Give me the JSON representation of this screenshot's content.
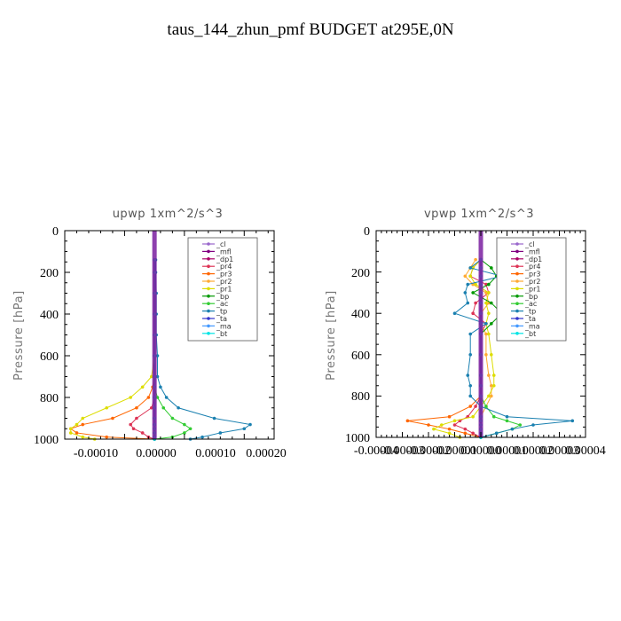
{
  "figure_title": "taus_144_zhun_pmf  BUDGET at295E,0N",
  "legend_entries": [
    "_cl",
    "_mfl",
    "_dp1",
    "_pr4",
    "_pr3",
    "_pr2",
    "_pr1",
    "_bp",
    "_ac",
    "_tp",
    "_ta",
    "_ma",
    "_bt"
  ],
  "colors": {
    "_cl": "#9966cc",
    "_mfl": "#800080",
    "_dp1": "#aa0066",
    "_pr4": "#dd3355",
    "_pr3": "#ff6600",
    "_pr2": "#ffaa33",
    "_pr1": "#dddd00",
    "_bp": "#009900",
    "_ac": "#33cc33",
    "_tp": "#1a80b0",
    "_ta": "#3333cc",
    "_ma": "#4499ff",
    "_bt": "#00e5e5"
  },
  "chart_data": [
    {
      "type": "line",
      "title": "upwp   1xm^2/s^3",
      "ylabel": "Pressure [hPa]",
      "ylim": [
        1000,
        0
      ],
      "xlim": [
        -0.00015,
        0.0002
      ],
      "yticks": [
        "0",
        "200",
        "400",
        "600",
        "800",
        "1000"
      ],
      "xticks": [
        "-0.00010",
        "0.00000",
        "0.00010",
        "0.00020"
      ],
      "legend_position": "top-right",
      "y": [
        140,
        200,
        300,
        400,
        500,
        600,
        700,
        750,
        800,
        850,
        900,
        930,
        950,
        970,
        990,
        1000
      ],
      "series": [
        {
          "name": "_cl",
          "values": [
            0,
            0,
            0,
            0,
            0,
            0,
            0,
            0,
            0,
            0,
            0,
            0,
            0,
            0,
            0,
            0
          ]
        },
        {
          "name": "_mfl",
          "values": [
            0,
            0,
            0,
            0,
            0,
            0,
            0,
            0,
            0,
            0,
            0,
            0,
            0,
            0,
            0,
            0
          ]
        },
        {
          "name": "_dp1",
          "values": [
            0,
            0,
            0,
            0,
            0,
            0,
            0,
            0,
            0,
            0,
            0,
            0,
            0,
            0,
            0,
            0
          ]
        },
        {
          "name": "_pr4",
          "values": [
            0,
            0,
            0,
            0,
            0,
            0,
            0,
            0,
            0,
            -5e-06,
            -3e-05,
            -4e-05,
            -3.5e-05,
            -2e-05,
            -1e-05,
            0
          ]
        },
        {
          "name": "_pr3",
          "values": [
            0,
            0,
            0,
            0,
            0,
            0,
            0,
            -3e-06,
            -1e-05,
            -3e-05,
            -7e-05,
            -0.00012,
            -0.00014,
            -0.00013,
            -8e-05,
            0
          ]
        },
        {
          "name": "_pr2",
          "values": [
            0,
            0,
            0,
            0,
            0,
            0,
            0,
            0,
            0,
            0,
            0,
            0,
            0,
            0,
            0,
            0
          ]
        },
        {
          "name": "_pr1",
          "values": [
            0,
            0,
            0,
            0,
            0,
            0,
            -5e-06,
            -2e-05,
            -4e-05,
            -8e-05,
            -0.00012,
            -0.00013,
            -0.00014,
            -0.00014,
            -0.00012,
            -0.0001
          ]
        },
        {
          "name": "_bp",
          "values": [
            0,
            0,
            0,
            0,
            0,
            0,
            0,
            0,
            0,
            0,
            0,
            0,
            0,
            0,
            0,
            0
          ]
        },
        {
          "name": "_ac",
          "values": [
            0,
            0,
            0,
            0,
            0,
            0,
            0,
            0,
            5e-06,
            1.5e-05,
            3e-05,
            5e-05,
            6e-05,
            5e-05,
            3e-05,
            0
          ]
        },
        {
          "name": "_tp",
          "values": [
            2e-06,
            2e-06,
            3e-06,
            3e-06,
            3e-06,
            5e-06,
            5e-06,
            1e-05,
            2e-05,
            4e-05,
            0.0001,
            0.00016,
            0.00015,
            0.00011,
            8e-05,
            6e-05
          ]
        },
        {
          "name": "_ta",
          "values": [
            0,
            0,
            0,
            0,
            0,
            0,
            0,
            0,
            0,
            0,
            0,
            0,
            0,
            0,
            0,
            0
          ]
        },
        {
          "name": "_ma",
          "values": [
            0,
            0,
            0,
            0,
            0,
            0,
            0,
            0,
            0,
            0,
            0,
            0,
            0,
            0,
            0,
            0
          ]
        },
        {
          "name": "_bt",
          "values": [
            0,
            0,
            0,
            0,
            0,
            0,
            0,
            0,
            0,
            0,
            0,
            0,
            0,
            0,
            0,
            0
          ]
        }
      ]
    },
    {
      "type": "line",
      "title": "vpwp   1xm^2/s^3",
      "ylabel": "Pressure [hPa]",
      "ylim": [
        1000,
        0
      ],
      "xlim": [
        -4e-05,
        4e-05
      ],
      "yticks": [
        "0",
        "200",
        "400",
        "600",
        "800",
        "1000"
      ],
      "xticks": [
        "-0.00003",
        "-0.00002",
        "-0.00001",
        "0.00000",
        "0.00001",
        "0.00002",
        "0.00003",
        "0.00004"
      ],
      "xtick_values": [
        -4e-05,
        -3e-05,
        -2e-05,
        -1e-05,
        0,
        1e-05,
        2e-05,
        3e-05,
        4e-05
      ],
      "xtick_labels_full": [
        "-0.00004",
        "-0.00003",
        "-0.00002",
        "-0.00001",
        "0.00000",
        "0.00001",
        "0.00002",
        "0.00003",
        "0.00004"
      ],
      "legend_position": "top-right",
      "y": [
        140,
        180,
        220,
        260,
        300,
        350,
        400,
        450,
        500,
        600,
        700,
        750,
        800,
        850,
        900,
        920,
        940,
        960,
        980,
        1000
      ],
      "series": [
        {
          "name": "_cl",
          "values": [
            0,
            0,
            0,
            0,
            0,
            0,
            0,
            0,
            0,
            0,
            0,
            0,
            0,
            0,
            0,
            0,
            0,
            0,
            0,
            0
          ]
        },
        {
          "name": "_mfl",
          "values": [
            0,
            0,
            0,
            0,
            0,
            0,
            0,
            0,
            0,
            0,
            0,
            0,
            0,
            0,
            0,
            0,
            0,
            0,
            0,
            0
          ]
        },
        {
          "name": "_dp1",
          "values": [
            0,
            0,
            0,
            0,
            0,
            0,
            0,
            0,
            0,
            0,
            0,
            0,
            0,
            0,
            0,
            0,
            0,
            0,
            0,
            0
          ]
        },
        {
          "name": "_pr4",
          "values": [
            0,
            -3e-06,
            -4e-06,
            2e-06,
            3e-06,
            -2e-06,
            -3e-06,
            2e-06,
            0,
            0,
            0,
            0,
            0,
            -2e-06,
            -5e-06,
            -8e-06,
            -1e-05,
            -6e-06,
            -3e-06,
            0
          ]
        },
        {
          "name": "_pr3",
          "values": [
            0,
            0,
            0,
            0,
            0,
            0,
            0,
            0,
            0,
            0,
            0,
            0,
            0,
            -4e-06,
            -1.2e-05,
            -2.8e-05,
            -2e-05,
            -1.2e-05,
            -6e-06,
            0
          ]
        },
        {
          "name": "_pr2",
          "values": [
            -2e-06,
            -4e-06,
            -6e-06,
            -3e-06,
            2e-06,
            3e-06,
            0,
            0,
            2e-06,
            2e-06,
            3e-06,
            4e-06,
            4e-06,
            2e-06,
            0,
            0,
            0,
            0,
            0,
            0
          ]
        },
        {
          "name": "_pr1",
          "values": [
            0,
            -3e-06,
            -4e-06,
            -2e-06,
            3e-06,
            2e-06,
            3e-06,
            2e-06,
            3e-06,
            4e-06,
            5e-06,
            5e-06,
            3e-06,
            0,
            -3e-06,
            -1e-05,
            -1.5e-05,
            -1.8e-05,
            -1.2e-05,
            -8e-06
          ]
        },
        {
          "name": "_bp",
          "values": [
            0,
            4e-06,
            6e-06,
            3e-06,
            -3e-06,
            4e-06,
            8e-06,
            4e-06,
            0,
            0,
            0,
            0,
            0,
            0,
            0,
            0,
            0,
            0,
            0,
            0
          ]
        },
        {
          "name": "_ac",
          "values": [
            0,
            0,
            0,
            0,
            0,
            0,
            0,
            0,
            0,
            0,
            0,
            0,
            0,
            2e-06,
            5e-06,
            1e-05,
            1.5e-05,
            1.2e-05,
            6e-06,
            0
          ]
        },
        {
          "name": "_tp",
          "values": [
            0,
            -4e-06,
            8e-06,
            -5e-06,
            -6e-06,
            -5e-06,
            -1e-05,
            2e-06,
            -4e-06,
            -4e-06,
            -5e-06,
            -4e-06,
            -4e-06,
            0,
            1e-05,
            3.5e-05,
            2e-05,
            1.2e-05,
            6e-06,
            0
          ]
        },
        {
          "name": "_ta",
          "values": [
            0,
            0,
            0,
            0,
            0,
            0,
            0,
            0,
            0,
            0,
            0,
            0,
            0,
            0,
            0,
            0,
            0,
            0,
            0,
            0
          ]
        },
        {
          "name": "_ma",
          "values": [
            0,
            0,
            0,
            0,
            0,
            0,
            0,
            0,
            0,
            0,
            0,
            0,
            0,
            0,
            0,
            0,
            0,
            0,
            0,
            0
          ]
        },
        {
          "name": "_bt",
          "values": [
            0,
            0,
            0,
            0,
            0,
            0,
            0,
            0,
            0,
            0,
            0,
            0,
            0,
            0,
            0,
            0,
            0,
            0,
            0,
            0
          ]
        }
      ]
    }
  ]
}
